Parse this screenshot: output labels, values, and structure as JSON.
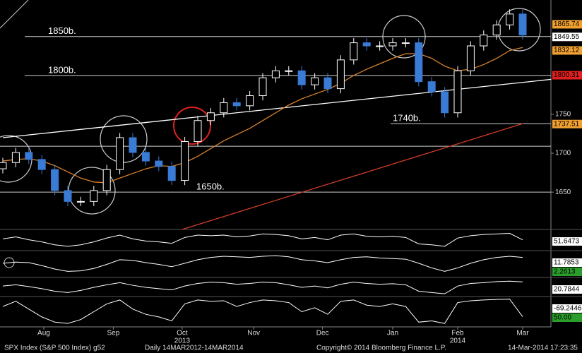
{
  "chart_data": {
    "type": "candlestick",
    "ticker": "SPX Index (S&P 500 Index) g52",
    "period": "Daily 14MAR2012-14MAR2014",
    "copyright": "Copyright© 2014 Bloomberg Finance L.P.",
    "timestamp": "14-Mar-2014 17:23:35",
    "xticks": [
      {
        "value": 3.15,
        "label": "Aug"
      },
      {
        "value": 8.5,
        "label": "Sep"
      },
      {
        "value": 13.8,
        "label": "Oct"
      },
      {
        "value": 19.3,
        "label": "Nov"
      },
      {
        "value": 24.6,
        "label": "Dec"
      },
      {
        "value": 30,
        "label": "Jan"
      },
      {
        "value": 35,
        "label": "Feb"
      },
      {
        "value": 40,
        "label": "Mar"
      }
    ],
    "years": [
      {
        "value": 13.8,
        "label": "2013"
      },
      {
        "value": 35,
        "label": "2014"
      }
    ],
    "ylim": [
      1602,
      1897
    ],
    "yticks": [
      1650,
      1700,
      1750
    ],
    "open": [
      1680,
      1688,
      1701,
      1692,
      1679,
      1652,
      1638,
      1638,
      1652,
      1679,
      1720,
      1701,
      1690,
      1683,
      1665,
      1715,
      1742,
      1752,
      1765,
      1761,
      1774,
      1797,
      1806,
      1806,
      1788,
      1797,
      1783,
      1820,
      1842,
      1838,
      1838,
      1842,
      1842,
      1792,
      1779,
      1752,
      1806,
      1838,
      1852,
      1865,
      1879
    ],
    "high": [
      1694,
      1707,
      1707,
      1698,
      1685,
      1658,
      1644,
      1658,
      1685,
      1726,
      1726,
      1707,
      1696,
      1689,
      1721,
      1748,
      1758,
      1771,
      1771,
      1780,
      1803,
      1812,
      1812,
      1812,
      1803,
      1803,
      1826,
      1848,
      1848,
      1844,
      1848,
      1848,
      1848,
      1798,
      1785,
      1812,
      1844,
      1858,
      1871,
      1885,
      1885
    ],
    "low": [
      1674,
      1682,
      1686,
      1673,
      1646,
      1632,
      1632,
      1632,
      1646,
      1673,
      1695,
      1684,
      1677,
      1659,
      1659,
      1709,
      1736,
      1746,
      1755,
      1755,
      1768,
      1791,
      1800,
      1782,
      1782,
      1777,
      1777,
      1814,
      1832,
      1832,
      1832,
      1836,
      1786,
      1773,
      1746,
      1746,
      1800,
      1832,
      1846,
      1859,
      1846
    ],
    "close": [
      1688,
      1701,
      1692,
      1679,
      1652,
      1638,
      1638,
      1652,
      1679,
      1720,
      1701,
      1690,
      1683,
      1665,
      1715,
      1742,
      1752,
      1765,
      1761,
      1774,
      1797,
      1806,
      1806,
      1788,
      1797,
      1783,
      1820,
      1842,
      1838,
      1838,
      1842,
      1842,
      1792,
      1779,
      1752,
      1806,
      1838,
      1852,
      1865,
      1879,
      1852
    ],
    "up_color": "#ffffff",
    "down_color": "#3a7bd5",
    "moving_average": {
      "color": "#d9822b",
      "values": [
        1690,
        1692,
        1693,
        1690,
        1684,
        1676,
        1668,
        1663,
        1662,
        1668,
        1674,
        1680,
        1684,
        1683,
        1688,
        1696,
        1706,
        1716,
        1724,
        1732,
        1742,
        1752,
        1762,
        1770,
        1776,
        1782,
        1790,
        1800,
        1808,
        1815,
        1822,
        1828,
        1828,
        1822,
        1812,
        1806,
        1808,
        1814,
        1822,
        1832,
        1836
      ]
    },
    "annotations": [
      {
        "value": 1850,
        "label": "1850b."
      },
      {
        "value": 1800,
        "label": "1800b."
      },
      {
        "value": 1738,
        "label": "1740b."
      },
      {
        "value": 1650,
        "label": "1650b."
      }
    ],
    "levels": [
      1709
    ],
    "trendlines": [
      {
        "color": "#ffffff",
        "points": [
          [
            0,
            1720
          ],
          [
            42.2,
            1795
          ]
        ]
      },
      {
        "color": "#d23c2a",
        "points": [
          [
            13.8,
            1602
          ],
          [
            40,
            1738
          ]
        ]
      }
    ],
    "price_labels": [
      {
        "value": 1865.74,
        "color": "#f0a030"
      },
      {
        "value": 1849.55,
        "color": "#ffffff"
      },
      {
        "value": 1832.12,
        "color": "#f0a030"
      },
      {
        "value": 1800.31,
        "color": "#e02020"
      },
      {
        "value": 1737.51,
        "color": "#f0a030"
      }
    ],
    "panels": [
      {
        "ylim": [
          20,
          80
        ],
        "color": "#ffffff",
        "values": [
          55,
          62,
          52,
          45,
          35,
          30,
          35,
          45,
          58,
          68,
          55,
          48,
          45,
          40,
          60,
          68,
          66,
          68,
          62,
          65,
          72,
          70,
          66,
          55,
          60,
          52,
          68,
          72,
          64,
          62,
          64,
          60,
          38,
          35,
          30,
          58,
          66,
          70,
          72,
          74,
          52
        ],
        "labels": [
          51.6473
        ]
      },
      {
        "ylim": [
          -20,
          20
        ],
        "color": "#ffffff",
        "values": [
          2,
          4,
          3,
          -2,
          -8,
          -12,
          -11,
          -7,
          0,
          8,
          7,
          3,
          0,
          -4,
          2,
          8,
          12,
          14,
          13,
          12,
          14,
          15,
          13,
          8,
          6,
          3,
          8,
          12,
          13,
          11,
          10,
          9,
          2,
          -6,
          -12,
          -6,
          2,
          8,
          12,
          14,
          12
        ],
        "labels": [
          11.7853,
          2.2613
        ]
      },
      {
        "ylim": [
          -30,
          30
        ],
        "color": "#ffffff",
        "values": [
          5,
          10,
          3,
          -5,
          -15,
          -20,
          -12,
          0,
          10,
          18,
          8,
          0,
          -5,
          -10,
          5,
          15,
          20,
          18,
          12,
          15,
          20,
          18,
          10,
          0,
          5,
          -2,
          12,
          20,
          15,
          12,
          14,
          10,
          -15,
          -20,
          -25,
          5,
          15,
          18,
          22,
          24,
          21
        ],
        "labels": [
          20.7844
        ]
      },
      {
        "ylim": [
          -100,
          0
        ],
        "color": "#ffffff",
        "values": [
          -30,
          -10,
          -40,
          -70,
          -90,
          -95,
          -80,
          -50,
          -20,
          -5,
          -40,
          -60,
          -70,
          -85,
          -20,
          -5,
          -10,
          -8,
          -30,
          -15,
          -5,
          -8,
          -15,
          -50,
          -35,
          -60,
          -10,
          -5,
          -25,
          -30,
          -20,
          -30,
          -90,
          -85,
          -95,
          -15,
          -8,
          -5,
          -3,
          -2,
          -69
        ],
        "labels": [
          -69.2446,
          {
            "value": 50,
            "label": "50.00"
          }
        ]
      }
    ]
  }
}
